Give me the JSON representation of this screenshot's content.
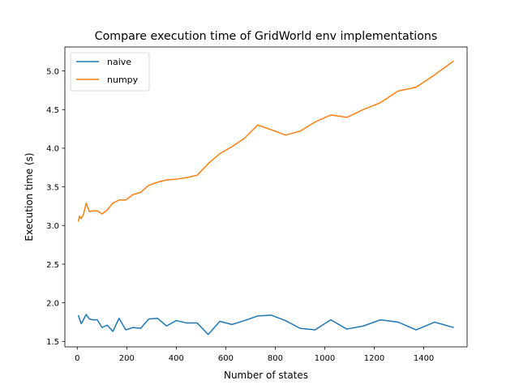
{
  "chart_data": {
    "type": "line",
    "title": "Compare execution time of GridWorld env implementations",
    "xlabel": "Number of states",
    "ylabel": "Execution time (s)",
    "xlim": [
      -50,
      1575
    ],
    "ylim": [
      1.43,
      5.31
    ],
    "xticks": [
      0,
      200,
      400,
      600,
      800,
      1000,
      1200,
      1400
    ],
    "xtick_labels": [
      "0",
      "200",
      "400",
      "600",
      "800",
      "1000",
      "1200",
      "1400"
    ],
    "yticks": [
      1.5,
      2.0,
      2.5,
      3.0,
      3.5,
      4.0,
      4.5,
      5.0
    ],
    "ytick_labels": [
      "1.5",
      "2.0",
      "2.5",
      "3.0",
      "3.5",
      "4.0",
      "4.5",
      "5.0"
    ],
    "grid": false,
    "legend_position": "top-left",
    "series": [
      {
        "name": "naive",
        "color": "#1f77b4",
        "x": [
          4,
          16,
          25,
          36,
          49,
          64,
          81,
          100,
          121,
          144,
          169,
          196,
          225,
          256,
          289,
          324,
          361,
          400,
          441,
          484,
          529,
          576,
          625,
          676,
          729,
          784,
          841,
          900,
          961,
          1024,
          1089,
          1156,
          1225,
          1296,
          1369,
          1444,
          1521
        ],
        "y": [
          1.84,
          1.73,
          1.78,
          1.85,
          1.79,
          1.78,
          1.78,
          1.68,
          1.71,
          1.63,
          1.8,
          1.65,
          1.68,
          1.67,
          1.79,
          1.8,
          1.7,
          1.77,
          1.74,
          1.74,
          1.59,
          1.76,
          1.72,
          1.77,
          1.83,
          1.84,
          1.77,
          1.67,
          1.65,
          1.78,
          1.66,
          1.7,
          1.78,
          1.75,
          1.65,
          1.75,
          1.68
        ]
      },
      {
        "name": "numpy",
        "color": "#ff7f0e",
        "x": [
          4,
          9,
          16,
          25,
          36,
          49,
          64,
          81,
          100,
          121,
          144,
          169,
          196,
          225,
          256,
          289,
          324,
          361,
          400,
          441,
          484,
          529,
          576,
          625,
          676,
          729,
          784,
          841,
          900,
          961,
          1024,
          1089,
          1156,
          1225,
          1296,
          1369,
          1444,
          1521
        ],
        "y": [
          3.05,
          3.12,
          3.09,
          3.14,
          3.29,
          3.18,
          3.19,
          3.19,
          3.15,
          3.2,
          3.29,
          3.33,
          3.33,
          3.4,
          3.43,
          3.52,
          3.56,
          3.59,
          3.6,
          3.62,
          3.65,
          3.8,
          3.93,
          4.02,
          4.13,
          4.3,
          4.24,
          4.17,
          4.22,
          4.34,
          4.43,
          4.4,
          4.5,
          4.59,
          4.74,
          4.79,
          4.95,
          5.13
        ]
      }
    ]
  }
}
